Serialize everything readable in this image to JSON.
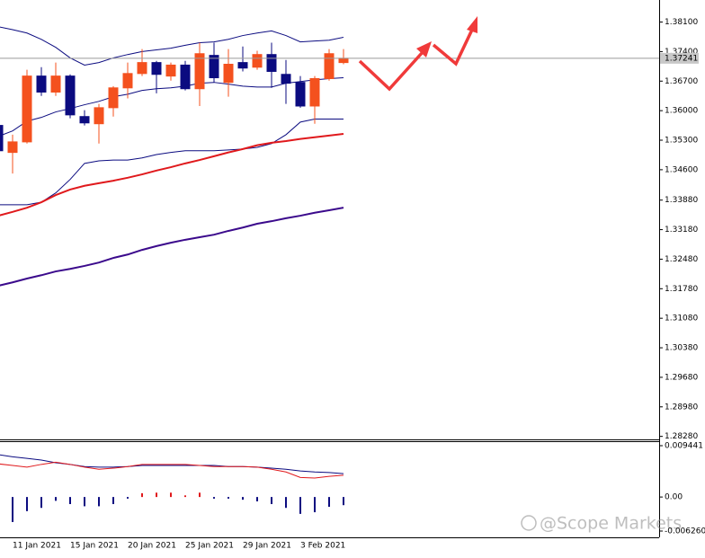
{
  "chart_data": [
    {
      "type": "candlestick",
      "categories": [
        null,
        "11 Jan 2021",
        null,
        null,
        null,
        "15 Jan 2021",
        null,
        null,
        null,
        "20 Jan 2021",
        null,
        null,
        null,
        "25 Jan 2021",
        null,
        null,
        null,
        "29 Jan 2021",
        null,
        null,
        null,
        "3 Feb 2021",
        null,
        null,
        null
      ],
      "open": [
        1.3565,
        1.3501,
        1.3526,
        1.3682,
        1.3644,
        1.3682,
        1.3586,
        1.3569,
        1.3607,
        1.3654,
        1.3688,
        1.3714,
        1.3682,
        1.3708,
        1.3652,
        1.3731,
        1.3667,
        1.3714,
        1.3703,
        1.3733,
        1.3686,
        1.3667,
        1.3611,
        1.3676,
        1.3714
      ],
      "high": [
        1.3575,
        1.3543,
        1.3697,
        1.3703,
        1.3714,
        1.3686,
        1.3601,
        1.3616,
        1.3658,
        1.3714,
        1.3746,
        1.3718,
        1.3714,
        1.3718,
        1.3761,
        1.3761,
        1.3746,
        1.3752,
        1.3742,
        1.3761,
        1.372,
        1.3682,
        1.3682,
        1.3746,
        1.3746
      ],
      "low": [
        1.349,
        1.3451,
        1.3522,
        1.3635,
        1.3635,
        1.3582,
        1.3565,
        1.3522,
        1.3586,
        1.3629,
        1.3682,
        1.3641,
        1.3671,
        1.3648,
        1.3611,
        1.3667,
        1.3633,
        1.3693,
        1.3697,
        1.3654,
        1.3616,
        1.3607,
        1.3569,
        1.3671,
        1.371
      ],
      "close": [
        1.3505,
        1.3526,
        1.3682,
        1.3644,
        1.3682,
        1.359,
        1.3571,
        1.3607,
        1.3654,
        1.3688,
        1.3714,
        1.3686,
        1.3708,
        1.3652,
        1.3735,
        1.3678,
        1.371,
        1.3701,
        1.3733,
        1.3693,
        1.3665,
        1.3611,
        1.3676,
        1.3735,
        1.37241
      ],
      "up_color": "#f4511e",
      "down_color": "#0b0b80",
      "lines": [
        {
          "color": "#0b0b80",
          "width": 1,
          "values": [
            1.3799,
            1.3792,
            1.3784,
            1.3769,
            1.375,
            1.3725,
            1.3708,
            1.3714,
            1.3725,
            1.3733,
            1.374,
            1.3744,
            1.3748,
            1.3755,
            1.3761,
            1.3763,
            1.3769,
            1.3778,
            1.3784,
            1.3789,
            1.3778,
            1.3763,
            1.3765,
            1.3767,
            1.3774
          ]
        },
        {
          "color": "#0b0b80",
          "width": 1,
          "values": [
            1.3539,
            1.3552,
            1.3575,
            1.3584,
            1.3597,
            1.3605,
            1.3614,
            1.3622,
            1.3633,
            1.3639,
            1.3648,
            1.3652,
            1.3654,
            1.3658,
            1.3665,
            1.3667,
            1.3663,
            1.3658,
            1.3656,
            1.3656,
            1.3665,
            1.3669,
            1.3673,
            1.3676,
            1.3678
          ]
        },
        {
          "color": "#0b0b80",
          "width": 1,
          "values": [
            1.3377,
            1.3377,
            1.3377,
            1.3383,
            1.3405,
            1.3437,
            1.3475,
            1.3481,
            1.3483,
            1.3483,
            1.3488,
            1.3496,
            1.3501,
            1.3505,
            1.3505,
            1.3505,
            1.3507,
            1.3509,
            1.3513,
            1.3522,
            1.3543,
            1.3573,
            1.358,
            1.358,
            1.358
          ]
        },
        {
          "color": "#e0191c",
          "width": 2,
          "values": [
            1.3351,
            1.336,
            1.337,
            1.3383,
            1.34,
            1.3413,
            1.3422,
            1.3428,
            1.3434,
            1.3441,
            1.3449,
            1.3458,
            1.3466,
            1.3475,
            1.3483,
            1.3492,
            1.3501,
            1.3509,
            1.3518,
            1.3524,
            1.3528,
            1.3533,
            1.3537,
            1.3541,
            1.3545
          ]
        },
        {
          "color": "#3b0a8c",
          "width": 2,
          "values": [
            1.3185,
            1.3193,
            1.3202,
            1.321,
            1.3219,
            1.3225,
            1.3232,
            1.324,
            1.3251,
            1.3259,
            1.327,
            1.3279,
            1.3287,
            1.3294,
            1.33,
            1.3306,
            1.3315,
            1.3323,
            1.3332,
            1.3338,
            1.3345,
            1.3351,
            1.3358,
            1.3364,
            1.337
          ]
        }
      ],
      "last_price": 1.37241,
      "ylim": [
        1.2823,
        1.3858
      ],
      "yticks": [
        {
          "value": 1.381,
          "label": "1.38100"
        },
        {
          "value": 1.374,
          "label": "1.37400"
        },
        {
          "value": 1.367,
          "label": "1.36700"
        },
        {
          "value": 1.36,
          "label": "1.36000"
        },
        {
          "value": 1.353,
          "label": "1.35300"
        },
        {
          "value": 1.346,
          "label": "1.34600"
        },
        {
          "value": 1.3388,
          "label": "1.33880"
        },
        {
          "value": 1.3318,
          "label": "1.33180"
        },
        {
          "value": 1.3248,
          "label": "1.32480"
        },
        {
          "value": 1.3178,
          "label": "1.31780"
        },
        {
          "value": 1.3108,
          "label": "1.31080"
        },
        {
          "value": 1.3038,
          "label": "1.30380"
        },
        {
          "value": 1.2968,
          "label": "1.29680"
        },
        {
          "value": 1.2898,
          "label": "1.28980"
        },
        {
          "value": 1.2828,
          "label": "1.28280"
        }
      ]
    },
    {
      "type": "macd",
      "histogram": [
        null,
        -0.0046,
        -0.0026,
        -0.002,
        -0.0007,
        -0.0013,
        -0.0017,
        -0.0017,
        -0.0013,
        -0.0003,
        0.0007,
        0.0008,
        0.0008,
        0.0003,
        0.0008,
        -0.0003,
        -0.0003,
        -0.0005,
        -0.0008,
        -0.0013,
        -0.002,
        -0.0031,
        -0.0028,
        -0.0018,
        -0.0015
      ],
      "color_positive": "#e0191c",
      "color_negative": "#0b0b80",
      "series": [
        {
          "color": "#0b0b80",
          "values": [
            0.0078,
            0.0074,
            0.0071,
            0.0068,
            0.0063,
            0.006,
            0.0056,
            0.0055,
            0.0055,
            0.0056,
            0.0058,
            0.0058,
            0.0058,
            0.0058,
            0.0058,
            0.0058,
            0.0056,
            0.0056,
            0.0055,
            0.0053,
            0.0051,
            0.0048,
            0.0046,
            0.0045,
            0.0043
          ]
        },
        {
          "color": "#e0191c",
          "values": [
            0.0061,
            0.0058,
            0.0055,
            0.006,
            0.0064,
            0.006,
            0.0055,
            0.0051,
            0.0053,
            0.0056,
            0.006,
            0.006,
            0.006,
            0.006,
            0.0058,
            0.0056,
            0.0056,
            0.0056,
            0.0055,
            0.0051,
            0.0046,
            0.0036,
            0.0035,
            0.0038,
            0.004
          ]
        }
      ],
      "ylim": [
        -0.00626,
        0.009441
      ],
      "yticks": [
        0.009441,
        {
          "value": 0,
          "label": "0.00"
        },
        {
          "value": -0.00626,
          "label": "-0.006260"
        }
      ]
    }
  ],
  "watermark": "@Scope Markets"
}
